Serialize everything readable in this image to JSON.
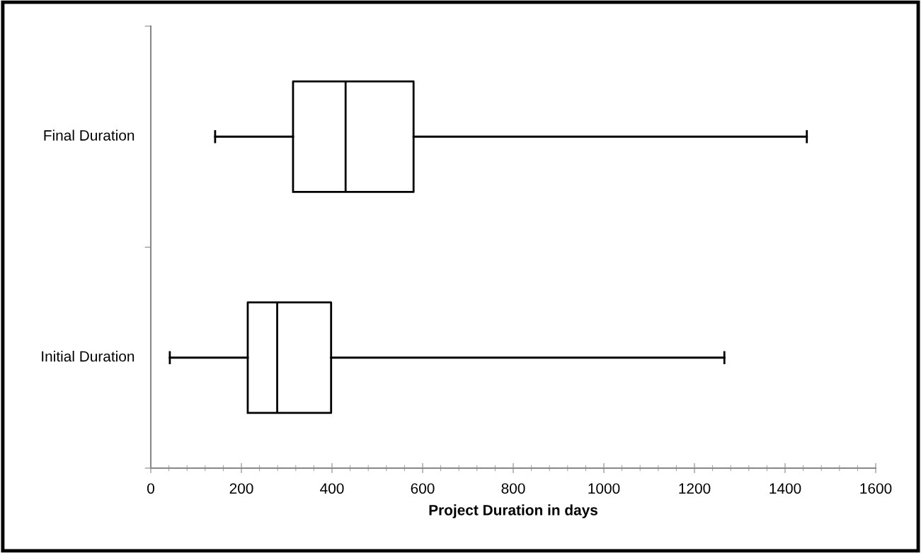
{
  "chart_data": {
    "type": "box",
    "orientation": "horizontal",
    "xlabel": "Project Duration in days",
    "categories": [
      "Final Duration",
      "Initial Duration"
    ],
    "boxes": [
      {
        "low": 142,
        "q1": 314,
        "median": 430,
        "q3": 580,
        "high": 1448
      },
      {
        "low": 42,
        "q1": 214,
        "median": 279,
        "q3": 398,
        "high": 1266
      }
    ],
    "xlim": [
      0,
      1600
    ],
    "xticks": [
      0,
      200,
      400,
      600,
      800,
      1000,
      1200,
      1400,
      1600
    ],
    "grid": false,
    "legend": false
  }
}
